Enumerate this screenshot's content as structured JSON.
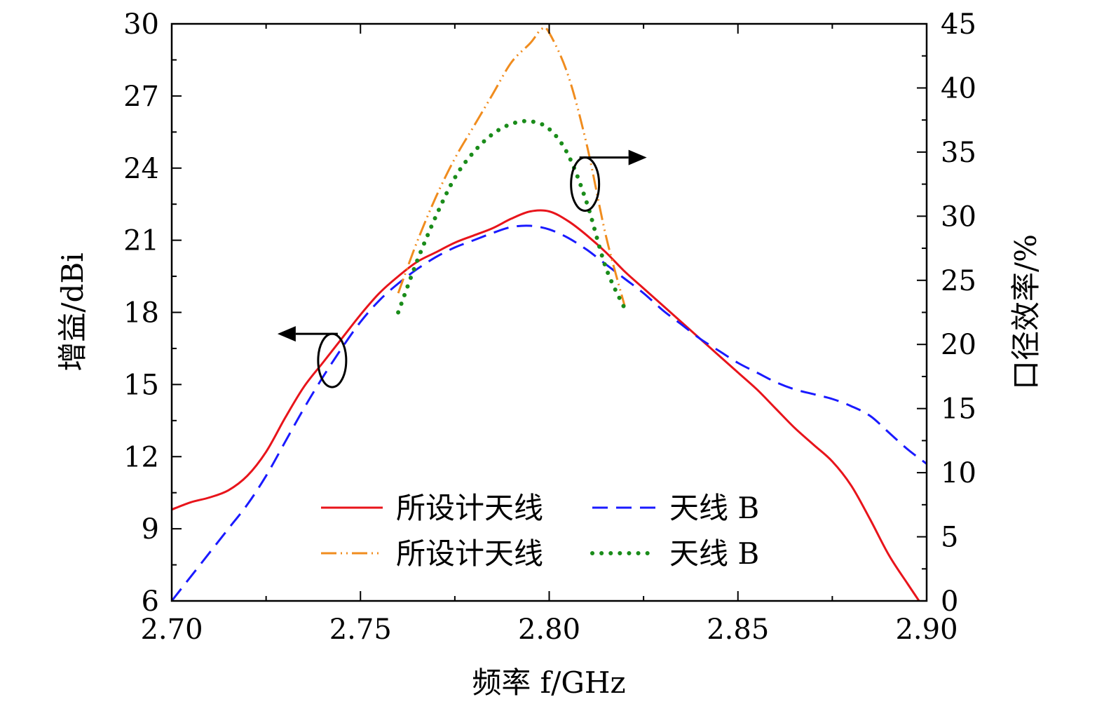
{
  "chart_data": {
    "type": "line",
    "xlabel": "频率 f/GHz",
    "ylabel_left": "增益/dBi",
    "ylabel_right": "口径效率/%",
    "xlim": [
      2.7,
      2.9
    ],
    "ylim_left": [
      6,
      30
    ],
    "ylim_right": [
      0,
      45
    ],
    "x_ticks": [
      "2.70",
      "2.75",
      "2.80",
      "2.85",
      "2.90"
    ],
    "y_left_ticks": [
      "6",
      "9",
      "12",
      "15",
      "18",
      "21",
      "24",
      "27",
      "30"
    ],
    "y_right_ticks": [
      "0",
      "5",
      "10",
      "15",
      "20",
      "25",
      "30",
      "35",
      "40",
      "45"
    ],
    "grid": false,
    "legend_position": "bottom-center",
    "series": [
      {
        "name": "所设计天线",
        "axis": "left",
        "color": "#e8141b",
        "style": "solid",
        "points": [
          [
            2.7,
            9.8
          ],
          [
            2.705,
            10.1
          ],
          [
            2.71,
            10.3
          ],
          [
            2.715,
            10.6
          ],
          [
            2.72,
            11.2
          ],
          [
            2.725,
            12.2
          ],
          [
            2.73,
            13.6
          ],
          [
            2.735,
            14.9
          ],
          [
            2.74,
            15.9
          ],
          [
            2.745,
            16.9
          ],
          [
            2.75,
            17.9
          ],
          [
            2.755,
            18.8
          ],
          [
            2.76,
            19.5
          ],
          [
            2.765,
            20.1
          ],
          [
            2.77,
            20.5
          ],
          [
            2.775,
            20.9
          ],
          [
            2.78,
            21.2
          ],
          [
            2.785,
            21.5
          ],
          [
            2.79,
            21.9
          ],
          [
            2.795,
            22.2
          ],
          [
            2.8,
            22.2
          ],
          [
            2.805,
            21.8
          ],
          [
            2.81,
            21.2
          ],
          [
            2.815,
            20.5
          ],
          [
            2.82,
            19.7
          ],
          [
            2.825,
            19.0
          ],
          [
            2.83,
            18.3
          ],
          [
            2.835,
            17.6
          ],
          [
            2.84,
            16.9
          ],
          [
            2.845,
            16.2
          ],
          [
            2.85,
            15.5
          ],
          [
            2.855,
            14.8
          ],
          [
            2.86,
            14.0
          ],
          [
            2.865,
            13.2
          ],
          [
            2.87,
            12.5
          ],
          [
            2.875,
            11.8
          ],
          [
            2.88,
            10.8
          ],
          [
            2.885,
            9.4
          ],
          [
            2.89,
            7.9
          ],
          [
            2.895,
            6.7
          ],
          [
            2.898,
            6.0
          ]
        ]
      },
      {
        "name": "天线 B",
        "axis": "left",
        "color": "#1a1aff",
        "style": "dashed",
        "points": [
          [
            2.7,
            6.0
          ],
          [
            2.705,
            7.0
          ],
          [
            2.71,
            8.0
          ],
          [
            2.715,
            9.0
          ],
          [
            2.72,
            10.0
          ],
          [
            2.725,
            11.2
          ],
          [
            2.73,
            12.6
          ],
          [
            2.735,
            14.0
          ],
          [
            2.74,
            15.3
          ],
          [
            2.745,
            16.5
          ],
          [
            2.75,
            17.6
          ],
          [
            2.755,
            18.5
          ],
          [
            2.76,
            19.2
          ],
          [
            2.765,
            19.8
          ],
          [
            2.77,
            20.3
          ],
          [
            2.775,
            20.7
          ],
          [
            2.78,
            21.0
          ],
          [
            2.785,
            21.3
          ],
          [
            2.79,
            21.55
          ],
          [
            2.795,
            21.6
          ],
          [
            2.8,
            21.45
          ],
          [
            2.805,
            21.1
          ],
          [
            2.81,
            20.6
          ],
          [
            2.815,
            20.0
          ],
          [
            2.82,
            19.4
          ],
          [
            2.825,
            18.8
          ],
          [
            2.83,
            18.1
          ],
          [
            2.835,
            17.5
          ],
          [
            2.84,
            16.9
          ],
          [
            2.845,
            16.4
          ],
          [
            2.85,
            15.9
          ],
          [
            2.855,
            15.5
          ],
          [
            2.86,
            15.1
          ],
          [
            2.865,
            14.8
          ],
          [
            2.87,
            14.6
          ],
          [
            2.875,
            14.4
          ],
          [
            2.88,
            14.1
          ],
          [
            2.885,
            13.7
          ],
          [
            2.89,
            13.0
          ],
          [
            2.895,
            12.3
          ],
          [
            2.9,
            11.7
          ]
        ]
      },
      {
        "name": "所设计天线",
        "axis": "right",
        "color": "#f08c1e",
        "style": "dash-dot-dot",
        "points": [
          [
            2.76,
            24.0
          ],
          [
            2.765,
            28.0
          ],
          [
            2.77,
            31.5
          ],
          [
            2.775,
            34.5
          ],
          [
            2.78,
            37.0
          ],
          [
            2.785,
            39.5
          ],
          [
            2.79,
            42.0
          ],
          [
            2.795,
            43.5
          ],
          [
            2.798,
            44.6
          ],
          [
            2.8,
            44.3
          ],
          [
            2.805,
            41.0
          ],
          [
            2.81,
            35.5
          ],
          [
            2.815,
            28.5
          ],
          [
            2.82,
            23.0
          ]
        ]
      },
      {
        "name": "天线 B",
        "axis": "right",
        "color": "#1a8c1a",
        "style": "dotted",
        "points": [
          [
            2.76,
            22.5
          ],
          [
            2.765,
            26.5
          ],
          [
            2.77,
            30.0
          ],
          [
            2.775,
            33.0
          ],
          [
            2.78,
            35.0
          ],
          [
            2.785,
            36.4
          ],
          [
            2.79,
            37.2
          ],
          [
            2.795,
            37.4
          ],
          [
            2.8,
            36.8
          ],
          [
            2.805,
            34.8
          ],
          [
            2.81,
            31.0
          ],
          [
            2.815,
            26.0
          ],
          [
            2.82,
            22.8
          ]
        ]
      }
    ],
    "annotations": [
      {
        "type": "ellipse-arrow",
        "target_axis": "left",
        "x": 2.7425,
        "y": 16.0,
        "direction": "left"
      },
      {
        "type": "ellipse-arrow",
        "target_axis": "right",
        "x": 2.8095,
        "y": 32.5,
        "direction": "right"
      }
    ]
  }
}
